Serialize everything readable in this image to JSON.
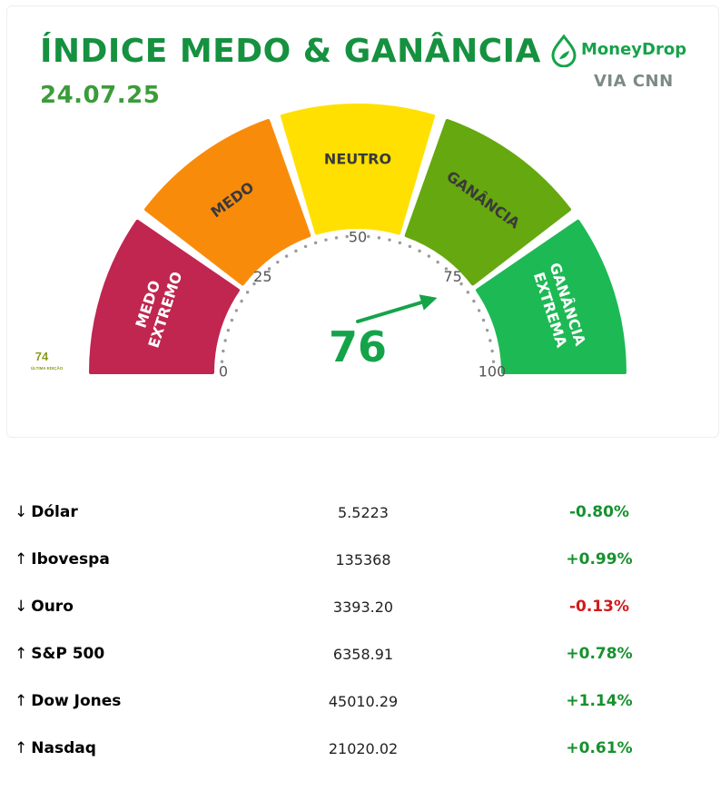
{
  "header": {
    "title": "ÍNDICE MEDO & GANÂNCIA",
    "date": "24.07.25",
    "brand": "MoneyDrop",
    "brand_icon": "drop-leaf-icon",
    "via": "VIA CNN"
  },
  "previous": {
    "value": "74",
    "label": "ÚLTIMA EDIÇÃO"
  },
  "gauge": {
    "value": 76,
    "value_label": "76",
    "min": 0,
    "max": 100,
    "ticks": [
      "0",
      "25",
      "50",
      "75",
      "100"
    ],
    "segments": [
      {
        "label_lines": [
          "MEDO",
          "EXTREMO"
        ],
        "color": "#c0264f",
        "from": 0,
        "to": 20
      },
      {
        "label_lines": [
          "MEDO"
        ],
        "color": "#f98b0b",
        "from": 20,
        "to": 40
      },
      {
        "label_lines": [
          "NEUTRO"
        ],
        "color": "#ffe000",
        "from": 40,
        "to": 60
      },
      {
        "label_lines": [
          "GANÂNCIA"
        ],
        "color": "#66a80f",
        "from": 60,
        "to": 80
      },
      {
        "label_lines": [
          "GANÂNCIA",
          "EXTREMA"
        ],
        "color": "#1db954",
        "from": 80,
        "to": 100
      }
    ],
    "needle_color": "#15a34a"
  },
  "markets": [
    {
      "arrow": "↓",
      "name": "Dólar",
      "value": "5.5223",
      "change": "-0.80%",
      "change_color": "#16912e"
    },
    {
      "arrow": "↑",
      "name": "Ibovespa",
      "value": "135368",
      "change": "+0.99%",
      "change_color": "#16912e"
    },
    {
      "arrow": "↓",
      "name": "Ouro",
      "value": "3393.20",
      "change": "-0.13%",
      "change_color": "#d11a1a"
    },
    {
      "arrow": "↑",
      "name": "S&P 500",
      "value": "6358.91",
      "change": "+0.78%",
      "change_color": "#16912e"
    },
    {
      "arrow": "↑",
      "name": "Dow Jones",
      "value": "45010.29",
      "change": "+1.14%",
      "change_color": "#16912e"
    },
    {
      "arrow": "↑",
      "name": "Nasdaq",
      "value": "21020.02",
      "change": "+0.61%",
      "change_color": "#16912e"
    }
  ]
}
